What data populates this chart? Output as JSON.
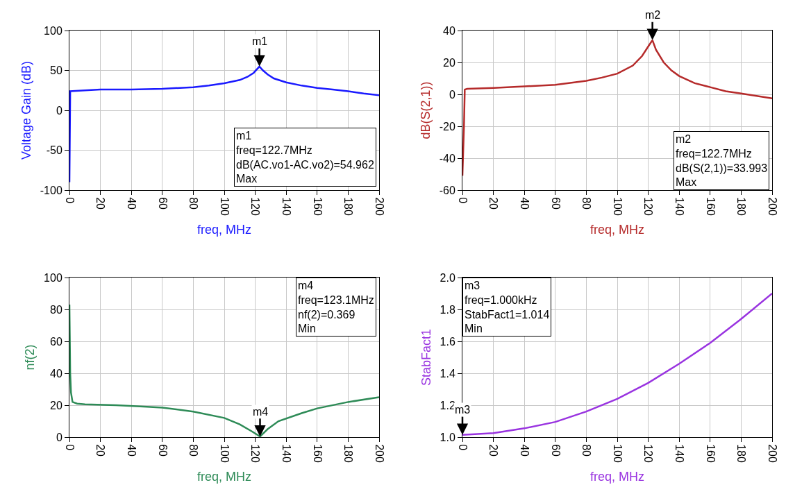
{
  "chart_data": [
    {
      "type": "line",
      "xlabel": "freq, MHz",
      "ylabel": "Voltage Gain (dB)",
      "xlim": [
        0,
        200
      ],
      "xticks": [
        0,
        20,
        40,
        60,
        80,
        100,
        120,
        140,
        160,
        180,
        200
      ],
      "ylim": [
        -100,
        100
      ],
      "yticks": [
        -100,
        -50,
        0,
        50,
        100
      ],
      "grid": true,
      "x": [
        0,
        0.5,
        10,
        20,
        40,
        60,
        80,
        90,
        100,
        110,
        115,
        119,
        122.7,
        125,
        128,
        132,
        140,
        150,
        160,
        170,
        180,
        190,
        200
      ],
      "series": [
        {
          "color": "#1a1aff",
          "values": [
            -90,
            24,
            25,
            26,
            26,
            27,
            29,
            31,
            34,
            38,
            42,
            47,
            54.962,
            50,
            45,
            40,
            35,
            31,
            28,
            26,
            24,
            21,
            19
          ]
        }
      ],
      "annotations": [
        {
          "text": "m1",
          "x": 122.7,
          "y": 54.962
        },
        "m1\nfreq=122.7MHz\ndB(AC.vo1-AC.vo2)=54.962\nMax"
      ]
    },
    {
      "type": "line",
      "xlabel": "freq, MHz",
      "ylabel": "dB(S(2,1))",
      "xlim": [
        0,
        200
      ],
      "xticks": [
        0,
        20,
        40,
        60,
        80,
        100,
        120,
        140,
        160,
        180,
        200
      ],
      "ylim": [
        -60,
        40
      ],
      "yticks": [
        -60,
        -40,
        -20,
        0,
        20,
        40
      ],
      "grid": true,
      "x": [
        0,
        1,
        1.5,
        3,
        20,
        40,
        60,
        80,
        90,
        100,
        110,
        116,
        120,
        122.7,
        125,
        130,
        135,
        140,
        150,
        160,
        170,
        180,
        190,
        200
      ],
      "series": [
        {
          "color": "#b52a2a",
          "values": [
            -51,
            -20,
            3,
            3.5,
            4,
            5,
            6,
            8.5,
            10.5,
            13,
            18,
            24,
            30,
            33.993,
            28,
            20,
            15,
            11.5,
            7,
            4.5,
            2,
            0.5,
            -1,
            -2.5
          ]
        }
      ],
      "annotations": [
        {
          "text": "m2",
          "x": 122.7,
          "y": 33.993
        },
        "m2\nfreq=122.7MHz\ndB(S(2,1))=33.993\nMax"
      ]
    },
    {
      "type": "line",
      "xlabel": "freq, MHz",
      "ylabel": "nf(2)",
      "xlim": [
        0,
        200
      ],
      "xticks": [
        0,
        20,
        40,
        60,
        80,
        100,
        120,
        140,
        160,
        180,
        200
      ],
      "ylim": [
        0,
        100
      ],
      "yticks": [
        0,
        20,
        40,
        60,
        80,
        100
      ],
      "grid": true,
      "x": [
        0,
        0.5,
        1,
        2,
        5,
        10,
        30,
        50,
        60,
        80,
        100,
        110,
        118,
        123.1,
        128,
        135,
        150,
        160,
        180,
        200
      ],
      "series": [
        {
          "color": "#2e8b57",
          "values": [
            83,
            40,
            28,
            22,
            21,
            20.5,
            20,
            19,
            18.5,
            16,
            12,
            8,
            3.5,
            0.369,
            5,
            10,
            15,
            18,
            22,
            25
          ]
        }
      ],
      "annotations": [
        {
          "text": "m4",
          "x": 123.1,
          "y": 0.369
        },
        "m4\nfreq=123.1MHz\nnf(2)=0.369\nMin"
      ]
    },
    {
      "type": "line",
      "xlabel": "freq, MHz",
      "ylabel": "StabFact1",
      "xlim": [
        0,
        200
      ],
      "xticks": [
        0,
        20,
        40,
        60,
        80,
        100,
        120,
        140,
        160,
        180,
        200
      ],
      "ylim": [
        1,
        2
      ],
      "yticks": [
        {
          "value": 1,
          "label": "1.0"
        },
        1.2,
        1.4,
        1.6,
        1.8,
        {
          "value": 2,
          "label": "2.0"
        }
      ],
      "grid": true,
      "x": [
        0.001,
        20,
        40,
        60,
        80,
        100,
        120,
        140,
        160,
        180,
        200
      ],
      "series": [
        {
          "color": "#9933e0",
          "values": [
            1.014,
            1.025,
            1.055,
            1.095,
            1.16,
            1.24,
            1.34,
            1.46,
            1.59,
            1.74,
            1.9
          ]
        }
      ],
      "annotations": [
        {
          "text": "m3",
          "x": 0.001,
          "y": 1.014
        },
        "m3\nfreq=1.000kHz\nStabFact1=1.014\nMin"
      ]
    }
  ]
}
